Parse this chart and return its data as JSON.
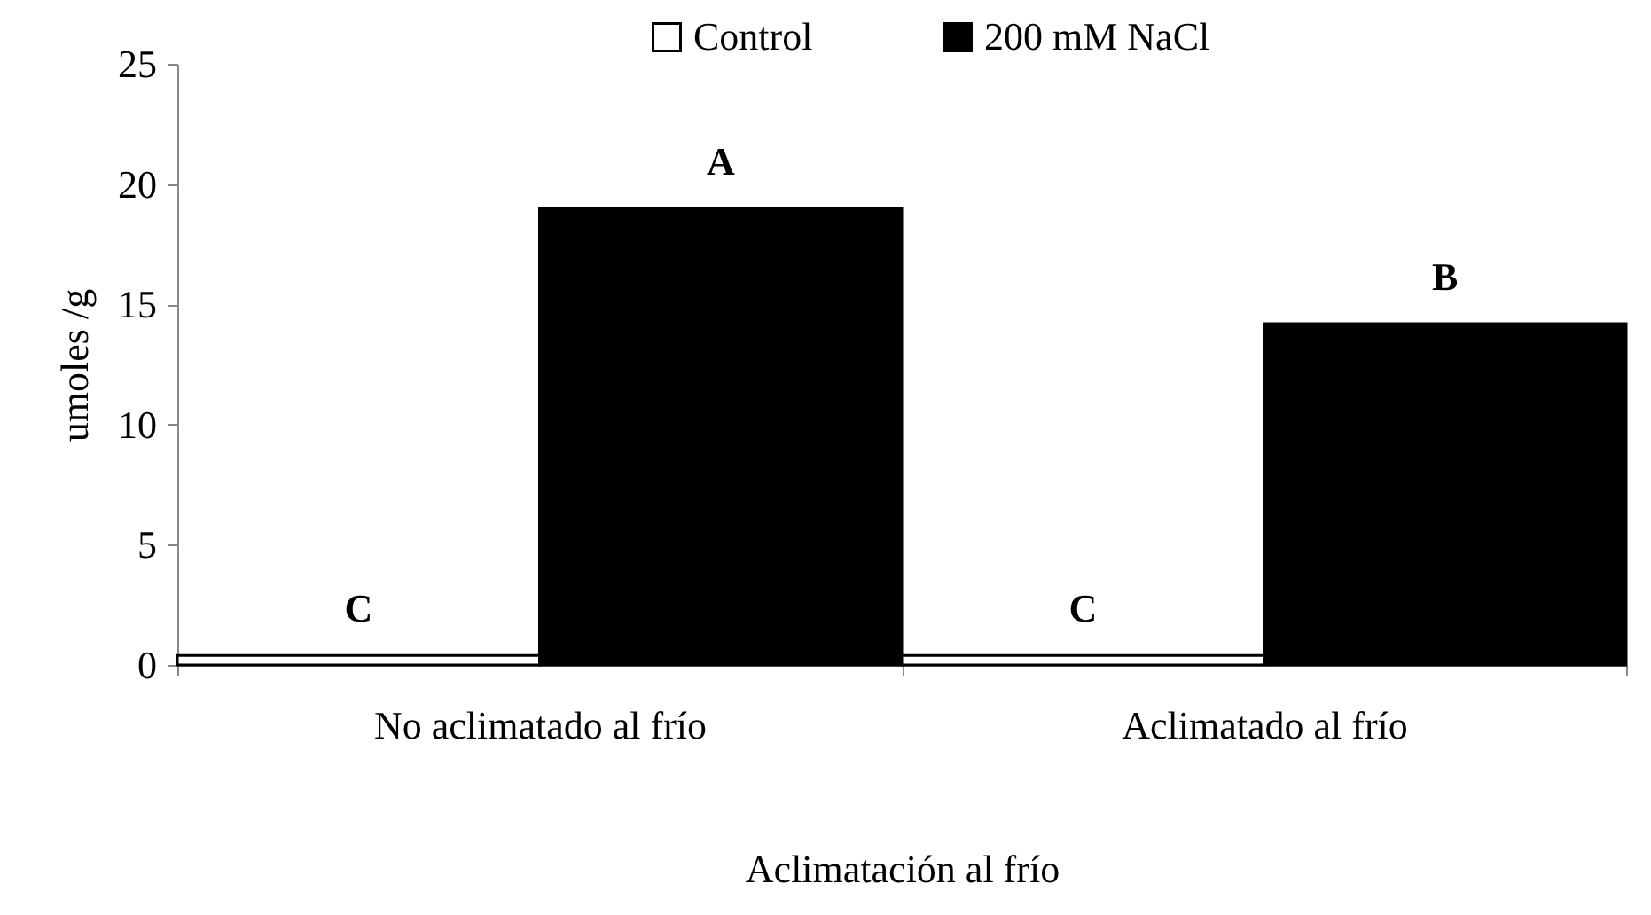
{
  "chart_data": {
    "type": "bar",
    "xlabel": "Aclimatación  al frío",
    "ylabel": "umoles   /g",
    "categories": [
      "No aclimatado al frío",
      "Aclimatado al frío"
    ],
    "series": [
      {
        "name": "Control",
        "color": "#ffffff",
        "values": [
          0.4,
          0.4
        ],
        "value_labels": [
          "C",
          "C"
        ]
      },
      {
        "name": "200 mM NaCl",
        "color": "#000000",
        "values": [
          19,
          14.2
        ],
        "value_labels": [
          "A",
          "B"
        ]
      }
    ],
    "ylim": [
      0,
      25
    ],
    "yticks": [
      0,
      5,
      10,
      15,
      20,
      25
    ],
    "grid": false,
    "legend": "top right"
  }
}
